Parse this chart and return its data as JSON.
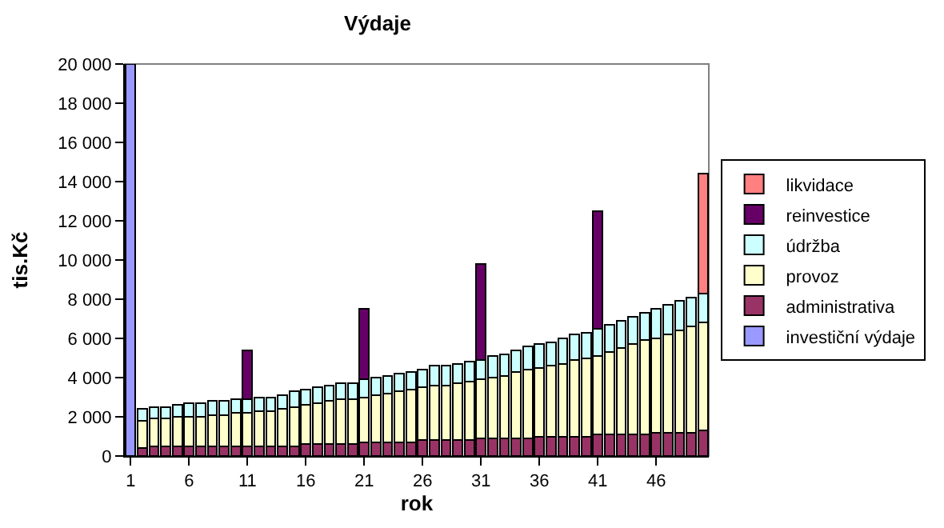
{
  "chart_data": {
    "type": "bar",
    "title": "Výdaje",
    "xlabel": "rok",
    "ylabel": "tis.Kč",
    "stacked": true,
    "legend": "right",
    "grid": false,
    "x": [
      1,
      2,
      3,
      4,
      5,
      6,
      7,
      8,
      9,
      10,
      11,
      12,
      13,
      14,
      15,
      16,
      17,
      18,
      19,
      20,
      21,
      22,
      23,
      24,
      25,
      26,
      27,
      28,
      29,
      30,
      31,
      32,
      33,
      34,
      35,
      36,
      37,
      38,
      39,
      40,
      41,
      42,
      43,
      44,
      45,
      46,
      47,
      48,
      49,
      50
    ],
    "xlim": [
      0.5,
      50.5
    ],
    "xticks": [
      1,
      6,
      11,
      16,
      21,
      26,
      31,
      36,
      41,
      46
    ],
    "ylim": [
      0,
      20000
    ],
    "yticks": [
      0,
      {
        "value": 2000,
        "label": "2 000"
      },
      {
        "value": 4000,
        "label": "4 000"
      },
      {
        "value": 6000,
        "label": "6 000"
      },
      {
        "value": 8000,
        "label": "8 000"
      },
      {
        "value": 10000,
        "label": "10 000"
      },
      {
        "value": 12000,
        "label": "12 000"
      },
      {
        "value": 14000,
        "label": "14 000"
      },
      {
        "value": 16000,
        "label": "16 000"
      },
      {
        "value": 18000,
        "label": "18 000"
      },
      {
        "value": 20000,
        "label": "20 000"
      }
    ],
    "series": [
      {
        "name": "investiční výdaje",
        "color": "#9999ff",
        "values": [
          20000,
          null,
          null,
          null,
          null,
          null,
          null,
          null,
          null,
          null,
          null,
          null,
          null,
          null,
          null,
          null,
          null,
          null,
          null,
          null,
          null,
          null,
          null,
          null,
          null,
          null,
          null,
          null,
          null,
          null,
          null,
          null,
          null,
          null,
          null,
          null,
          null,
          null,
          null,
          null,
          null,
          null,
          null,
          null,
          null,
          null,
          null,
          null,
          null,
          null
        ]
      },
      {
        "name": "administrativa",
        "color": "#993366",
        "values": [
          null,
          400,
          500,
          500,
          500,
          500,
          500,
          500,
          500,
          500,
          500,
          500,
          500,
          500,
          500,
          600,
          600,
          600,
          600,
          600,
          700,
          700,
          700,
          700,
          700,
          800,
          800,
          800,
          800,
          800,
          900,
          900,
          900,
          900,
          900,
          1000,
          1000,
          1000,
          1000,
          1000,
          1100,
          1100,
          1100,
          1100,
          1100,
          1200,
          1200,
          1200,
          1200,
          1300
        ]
      },
      {
        "name": "provoz",
        "color": "#ffffcc",
        "values": [
          null,
          1400,
          1400,
          1400,
          1500,
          1500,
          1500,
          1600,
          1600,
          1700,
          1700,
          1800,
          1800,
          1900,
          2000,
          2000,
          2100,
          2200,
          2300,
          2300,
          2300,
          2400,
          2500,
          2600,
          2700,
          2700,
          2800,
          2800,
          2900,
          3000,
          3000,
          3100,
          3200,
          3400,
          3500,
          3500,
          3600,
          3700,
          3900,
          4000,
          4000,
          4200,
          4400,
          4600,
          4800,
          4800,
          5000,
          5200,
          5400,
          5500
        ]
      },
      {
        "name": "údržba",
        "color": "#ccffff",
        "values": [
          null,
          600,
          600,
          600,
          600,
          700,
          700,
          700,
          700,
          700,
          700,
          700,
          700,
          700,
          800,
          800,
          800,
          800,
          800,
          800,
          900,
          900,
          900,
          900,
          900,
          900,
          1000,
          1000,
          1000,
          1000,
          1000,
          1100,
          1100,
          1100,
          1200,
          1200,
          1200,
          1300,
          1300,
          1300,
          1400,
          1400,
          1400,
          1400,
          1400,
          1500,
          1500,
          1500,
          1500,
          1500
        ]
      },
      {
        "name": "reinvestice",
        "color": "#660066",
        "values": [
          null,
          null,
          null,
          null,
          null,
          null,
          null,
          null,
          null,
          null,
          2500,
          null,
          null,
          null,
          null,
          null,
          null,
          null,
          null,
          null,
          3600,
          null,
          null,
          null,
          null,
          null,
          null,
          null,
          null,
          null,
          4900,
          null,
          null,
          null,
          null,
          null,
          null,
          null,
          null,
          null,
          6000,
          null,
          null,
          null,
          null,
          null,
          null,
          null,
          null,
          null
        ]
      },
      {
        "name": "likvidace",
        "color": "#ff8080",
        "values": [
          null,
          null,
          null,
          null,
          null,
          null,
          null,
          null,
          null,
          null,
          null,
          null,
          null,
          null,
          null,
          null,
          null,
          null,
          null,
          null,
          null,
          null,
          null,
          null,
          null,
          null,
          null,
          null,
          null,
          null,
          null,
          null,
          null,
          null,
          null,
          null,
          null,
          null,
          null,
          null,
          null,
          null,
          null,
          null,
          null,
          null,
          null,
          null,
          null,
          6100
        ]
      }
    ]
  }
}
